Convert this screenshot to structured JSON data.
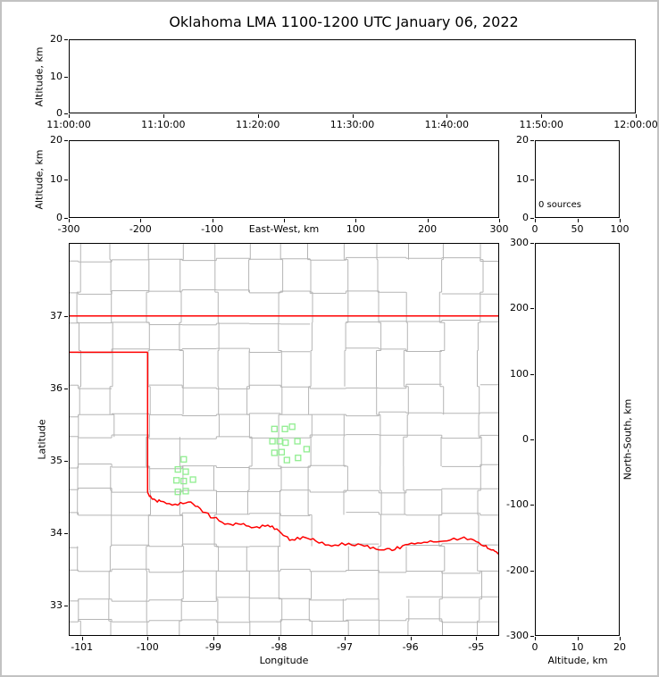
{
  "title": "Oklahoma LMA 1100-1200 UTC January 06, 2022",
  "colors": {
    "background": "#ffffff",
    "frame": "#c2c2c2",
    "axis": "#000000",
    "county_lines": "#b5b5b5",
    "state_border": "#ff0000",
    "station_marker": "#90ee90"
  },
  "chart_data": [
    {
      "id": "time_height",
      "type": "scatter",
      "ylabel": "Altitude, km",
      "ylim": [
        0,
        20
      ],
      "yticks": [
        0,
        10,
        20
      ],
      "xticks": [
        "11:00:00",
        "11:10:00",
        "11:20:00",
        "11:30:00",
        "11:40:00",
        "11:50:00",
        "12:00:00"
      ],
      "points": []
    },
    {
      "id": "ew_height",
      "type": "scatter",
      "ylabel": "Altitude, km",
      "xlabel": "East-West, km",
      "ylim": [
        0,
        20
      ],
      "yticks": [
        0,
        10,
        20
      ],
      "xlim": [
        -300,
        300
      ],
      "xtick_marks": [
        -300,
        -200,
        -100,
        0,
        100,
        200,
        300
      ],
      "xtick_labels": [
        -300,
        -200,
        -100,
        100,
        200,
        300
      ],
      "points": []
    },
    {
      "id": "alt_histogram",
      "type": "scatter",
      "annotation": "0 sources",
      "ylim": [
        0,
        20
      ],
      "yticks": [
        0,
        10,
        20
      ],
      "xlim": [
        0,
        100
      ],
      "xticks": [
        0,
        50,
        100
      ],
      "points": []
    },
    {
      "id": "plan_view",
      "type": "scatter",
      "xlabel": "Longitude",
      "ylabel": "Latitude",
      "xlim": [
        -101.2,
        -94.65
      ],
      "ylim": [
        32.58,
        38.01
      ],
      "xticks": [
        -101,
        -100,
        -99,
        -98,
        -97,
        -96,
        -95
      ],
      "yticks": [
        33,
        34,
        35,
        36,
        37
      ],
      "marker": "open-square",
      "marker_color": "#90ee90",
      "points": [
        [
          -98.07,
          35.44
        ],
        [
          -97.91,
          35.44
        ],
        [
          -97.8,
          35.47
        ],
        [
          -98.1,
          35.27
        ],
        [
          -97.99,
          35.27
        ],
        [
          -97.9,
          35.25
        ],
        [
          -97.72,
          35.27
        ],
        [
          -98.07,
          35.11
        ],
        [
          -97.96,
          35.12
        ],
        [
          -97.88,
          35.01
        ],
        [
          -97.71,
          35.04
        ],
        [
          -97.58,
          35.16
        ],
        [
          -99.45,
          35.02
        ],
        [
          -99.54,
          34.88
        ],
        [
          -99.42,
          34.85
        ],
        [
          -99.56,
          34.73
        ],
        [
          -99.45,
          34.72
        ],
        [
          -99.31,
          34.74
        ],
        [
          -99.54,
          34.57
        ],
        [
          -99.42,
          34.58
        ]
      ],
      "state_border": {
        "color": "#ff0000",
        "north_border_lat": 37.0,
        "panhandle_south_border": {
          "lat": 36.5,
          "lon_range": [
            -101.2,
            -100.0
          ]
        },
        "west_border": {
          "lon": -100.0,
          "lat_range": [
            34.56,
            36.5
          ]
        },
        "red_river_boundary": [
          [
            -100.0,
            34.56
          ],
          [
            -99.93,
            34.47
          ],
          [
            -99.8,
            34.44
          ],
          [
            -99.58,
            34.4
          ],
          [
            -99.38,
            34.43
          ],
          [
            -99.2,
            34.34
          ],
          [
            -99.0,
            34.21
          ],
          [
            -98.78,
            34.13
          ],
          [
            -98.58,
            34.12
          ],
          [
            -98.38,
            34.08
          ],
          [
            -98.17,
            34.11
          ],
          [
            -98.0,
            34.03
          ],
          [
            -97.84,
            33.9
          ],
          [
            -97.64,
            33.95
          ],
          [
            -97.44,
            33.89
          ],
          [
            -97.2,
            33.82
          ],
          [
            -96.94,
            33.86
          ],
          [
            -96.7,
            33.82
          ],
          [
            -96.48,
            33.77
          ],
          [
            -96.28,
            33.76
          ],
          [
            -96.08,
            33.84
          ],
          [
            -95.84,
            33.86
          ],
          [
            -95.6,
            33.88
          ],
          [
            -95.34,
            33.93
          ],
          [
            -95.08,
            33.92
          ],
          [
            -94.88,
            33.82
          ],
          [
            -94.74,
            33.77
          ],
          [
            -94.62,
            33.72
          ]
        ]
      }
    },
    {
      "id": "ns_height",
      "type": "scatter",
      "xlabel": "Altitude, km",
      "ylabel": "North-South, km",
      "xlim": [
        0,
        20
      ],
      "xticks": [
        0,
        10,
        20
      ],
      "ylim": [
        -300,
        300
      ],
      "yticks": [
        300,
        200,
        100,
        0,
        -100,
        -200,
        -300
      ],
      "points": []
    }
  ]
}
